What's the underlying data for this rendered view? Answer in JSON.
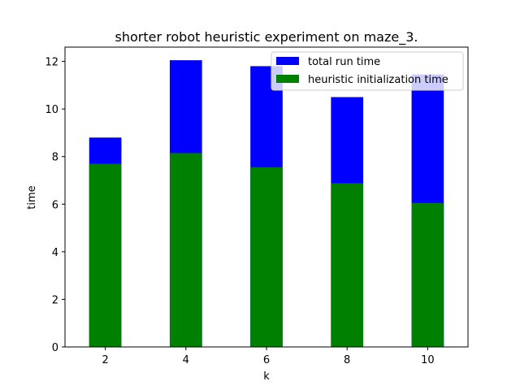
{
  "chart_data": {
    "type": "bar",
    "stacking": "overlay",
    "title": "shorter robot heuristic experiment on maze_3.",
    "xlabel": "k",
    "ylabel": "time",
    "x": [
      2,
      4,
      6,
      8,
      10
    ],
    "xlim": [
      1.0,
      11.0
    ],
    "ylim": [
      0,
      12.6
    ],
    "xticks": [
      2,
      4,
      6,
      8,
      10
    ],
    "yticks": [
      0,
      2,
      4,
      6,
      8,
      10,
      12
    ],
    "legend_position": "upper right",
    "grid": false,
    "series": [
      {
        "name": "total run time",
        "color": "#0000ff",
        "values": [
          8.8,
          12.05,
          11.8,
          10.5,
          11.45
        ]
      },
      {
        "name": "heuristic initialization time",
        "color": "#008000",
        "values": [
          7.7,
          8.15,
          7.55,
          6.88,
          6.05
        ]
      }
    ]
  }
}
